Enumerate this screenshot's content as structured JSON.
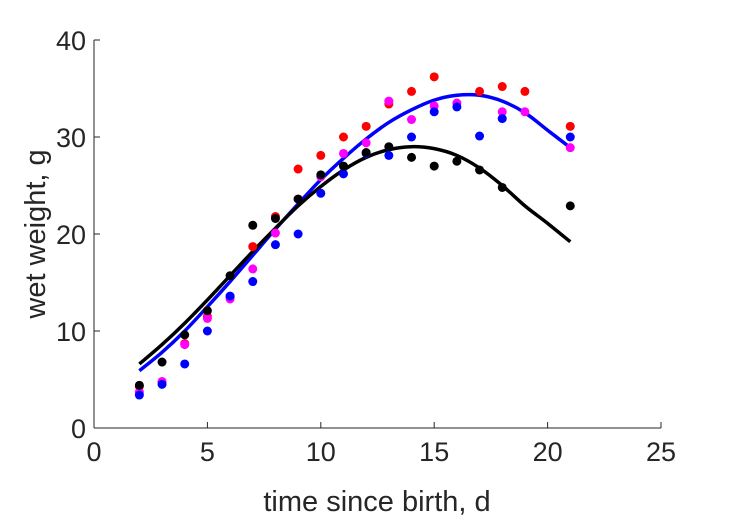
{
  "chart_data": {
    "type": "scatter",
    "xlabel": "time since birth, d",
    "ylabel": "wet weight, g",
    "xlim": [
      0,
      25
    ],
    "ylim": [
      0,
      40
    ],
    "xticks": [
      "0",
      "5",
      "10",
      "15",
      "20",
      "25"
    ],
    "yticks": [
      "0",
      "10",
      "20",
      "30",
      "40"
    ],
    "grid": false,
    "series": [
      {
        "kind": "points",
        "color": "#ff0000",
        "x": [
          2,
          3,
          4,
          5,
          6,
          7,
          8,
          9,
          10,
          11,
          12,
          13,
          14,
          15,
          17,
          18,
          19,
          21
        ],
        "y": [
          4.3,
          4.7,
          8.7,
          11.5,
          13.5,
          18.7,
          21.8,
          26.7,
          28.1,
          30.0,
          31.1,
          33.4,
          34.7,
          36.2,
          34.7,
          35.2,
          34.7,
          31.1
        ]
      },
      {
        "kind": "points",
        "color": "#ff00ff",
        "x": [
          2,
          3,
          4,
          5,
          6,
          7,
          8,
          9,
          10,
          11,
          12,
          13,
          14,
          15,
          16,
          18,
          19,
          21
        ],
        "y": [
          3.7,
          4.8,
          8.6,
          11.3,
          13.3,
          16.4,
          20.1,
          23.6,
          25.9,
          28.3,
          29.4,
          33.7,
          31.8,
          33.2,
          33.5,
          32.6,
          32.6,
          28.9
        ]
      },
      {
        "kind": "points",
        "color": "#0000ff",
        "x": [
          2,
          3,
          4,
          5,
          6,
          7,
          8,
          9,
          10,
          11,
          12,
          13,
          14,
          15,
          16,
          17,
          18,
          21
        ],
        "y": [
          3.4,
          4.5,
          6.6,
          10.0,
          13.6,
          15.1,
          18.9,
          20.0,
          24.2,
          26.2,
          28.3,
          28.1,
          30.0,
          32.6,
          33.1,
          30.1,
          31.9,
          30.0
        ]
      },
      {
        "kind": "points",
        "color": "#000000",
        "x": [
          2,
          3,
          4,
          5,
          6,
          7,
          8,
          9,
          10,
          11,
          12,
          13,
          14,
          15,
          16,
          17,
          18,
          21
        ],
        "y": [
          4.4,
          6.8,
          9.6,
          12.1,
          15.7,
          20.9,
          21.6,
          23.6,
          26.1,
          27.0,
          28.4,
          29.0,
          27.9,
          27.0,
          27.5,
          26.6,
          24.8,
          22.9
        ]
      },
      {
        "kind": "curve",
        "color": "#0000ff",
        "x": [
          2,
          3,
          4,
          5,
          6,
          7,
          8,
          9,
          10,
          11,
          12,
          13,
          14,
          15,
          16,
          17,
          18,
          19,
          20,
          21
        ],
        "y": [
          5.9,
          7.8,
          10.0,
          12.5,
          15.1,
          17.8,
          20.5,
          23.1,
          25.6,
          27.8,
          29.8,
          31.5,
          32.8,
          33.8,
          34.3,
          34.3,
          33.7,
          32.5,
          30.7,
          28.9
        ]
      },
      {
        "kind": "curve",
        "color": "#000000",
        "x": [
          2,
          3,
          4,
          5,
          6,
          7,
          8,
          9,
          10,
          11,
          12,
          13,
          14,
          15,
          16,
          17,
          18,
          19,
          20,
          21
        ],
        "y": [
          6.6,
          8.6,
          10.8,
          13.2,
          15.7,
          18.2,
          20.6,
          22.9,
          24.9,
          26.6,
          27.9,
          28.7,
          29.0,
          28.8,
          28.1,
          26.8,
          25.0,
          22.9,
          21.1,
          19.2
        ]
      }
    ]
  }
}
